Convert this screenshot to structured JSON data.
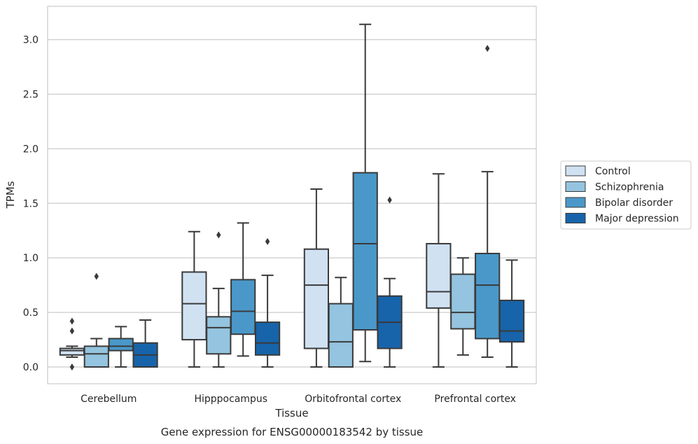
{
  "chart_data": {
    "type": "box",
    "title": "",
    "xlabel": "Tissue",
    "ylabel": "TPMs",
    "caption": "Gene expression for ENSG00000183542 by tissue",
    "ylim": [
      -0.15,
      3.3
    ],
    "yticks": [
      "0.0",
      "0.5",
      "1.0",
      "1.5",
      "2.0",
      "2.5",
      "3.0"
    ],
    "grid": "horizontal",
    "legend_position": "right",
    "categories": [
      "Cerebellum",
      "Hipppocampus",
      "Orbitofrontal cortex",
      "Prefrontal cortex"
    ],
    "series": [
      {
        "name": "Control",
        "color": "#d0e1f2",
        "boxes": [
          {
            "whislo": 0.09,
            "q1": 0.11,
            "med": 0.15,
            "q3": 0.17,
            "whishi": 0.19,
            "fliers": [
              0.0,
              0.33,
              0.42
            ]
          },
          {
            "whislo": 0.0,
            "q1": 0.25,
            "med": 0.58,
            "q3": 0.87,
            "whishi": 1.24,
            "fliers": []
          },
          {
            "whislo": 0.0,
            "q1": 0.17,
            "med": 0.75,
            "q3": 1.08,
            "whishi": 1.63,
            "fliers": []
          },
          {
            "whislo": 0.0,
            "q1": 0.54,
            "med": 0.69,
            "q3": 1.13,
            "whishi": 1.77,
            "fliers": []
          }
        ]
      },
      {
        "name": "Schizophrenia",
        "color": "#94c4df",
        "boxes": [
          {
            "whislo": 0.0,
            "q1": 0.0,
            "med": 0.12,
            "q3": 0.19,
            "whishi": 0.26,
            "fliers": [
              0.83
            ]
          },
          {
            "whislo": 0.0,
            "q1": 0.12,
            "med": 0.36,
            "q3": 0.46,
            "whishi": 0.72,
            "fliers": [
              1.21
            ]
          },
          {
            "whislo": 0.0,
            "q1": 0.0,
            "med": 0.23,
            "q3": 0.58,
            "whishi": 0.82,
            "fliers": []
          },
          {
            "whislo": 0.11,
            "q1": 0.35,
            "med": 0.5,
            "q3": 0.85,
            "whishi": 1.0,
            "fliers": []
          }
        ]
      },
      {
        "name": "Bipolar disorder",
        "color": "#4a98c9",
        "boxes": [
          {
            "whislo": 0.0,
            "q1": 0.15,
            "med": 0.19,
            "q3": 0.26,
            "whishi": 0.37,
            "fliers": []
          },
          {
            "whislo": 0.1,
            "q1": 0.3,
            "med": 0.51,
            "q3": 0.8,
            "whishi": 1.32,
            "fliers": []
          },
          {
            "whislo": 0.05,
            "q1": 0.34,
            "med": 1.13,
            "q3": 1.78,
            "whishi": 3.14,
            "fliers": []
          },
          {
            "whislo": 0.09,
            "q1": 0.26,
            "med": 0.75,
            "q3": 1.04,
            "whishi": 1.79,
            "fliers": [
              2.92
            ]
          }
        ]
      },
      {
        "name": "Major depression",
        "color": "#1764ab",
        "boxes": [
          {
            "whislo": 0.0,
            "q1": 0.0,
            "med": 0.11,
            "q3": 0.22,
            "whishi": 0.43,
            "fliers": []
          },
          {
            "whislo": 0.0,
            "q1": 0.11,
            "med": 0.22,
            "q3": 0.41,
            "whishi": 0.84,
            "fliers": [
              1.15
            ]
          },
          {
            "whislo": 0.0,
            "q1": 0.17,
            "med": 0.41,
            "q3": 0.65,
            "whishi": 0.81,
            "fliers": [
              1.53
            ]
          },
          {
            "whislo": 0.0,
            "q1": 0.23,
            "med": 0.33,
            "q3": 0.61,
            "whishi": 0.98,
            "fliers": []
          }
        ]
      }
    ]
  }
}
